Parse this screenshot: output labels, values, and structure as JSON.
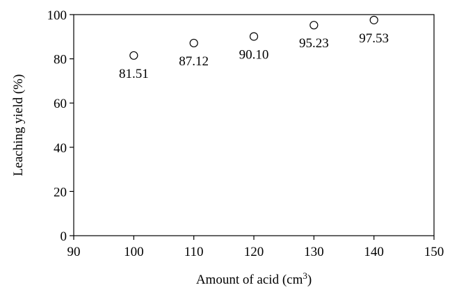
{
  "chart_data": {
    "type": "scatter",
    "title": "",
    "xlabel": "Amount of acid (cm",
    "xlabel_superscript": "3",
    "xlabel_suffix": ")",
    "ylabel": "Leaching yield (%)",
    "xlim": [
      90,
      150
    ],
    "ylim": [
      0,
      100
    ],
    "xticks": [
      90,
      100,
      110,
      120,
      130,
      140,
      150
    ],
    "yticks": [
      0,
      20,
      40,
      60,
      80,
      100
    ],
    "grid": false,
    "legend": "none",
    "series": [
      {
        "marker": "open-circle",
        "color": "#000000",
        "x": [
          100,
          110,
          120,
          130,
          140
        ],
        "y": [
          81.51,
          87.12,
          90.1,
          95.23,
          97.53
        ],
        "labels": [
          "81.51",
          "87.12",
          "90.10",
          "95.23",
          "97.53"
        ]
      }
    ]
  }
}
